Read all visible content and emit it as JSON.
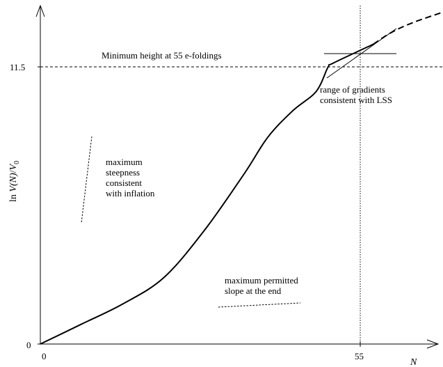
{
  "chart_data": {
    "type": "line",
    "xlabel": "N",
    "ylabel": {
      "prefix": "ln ",
      "v": "V",
      "arg": "(N)",
      "slash": "/",
      "v0": "V",
      "sub": "0"
    },
    "x_ticks": [
      {
        "value": 0,
        "label": "0"
      },
      {
        "value": 55,
        "label": "55"
      }
    ],
    "y_ticks": [
      {
        "value": 0,
        "label": "0"
      },
      {
        "value": 11.5,
        "label": "11.5"
      }
    ],
    "xlim": [
      0,
      75.6
    ],
    "ylim": [
      0,
      14.0
    ],
    "reference_lines": [
      {
        "orientation": "horizontal",
        "value": 11.5,
        "style": "dashed"
      },
      {
        "orientation": "vertical",
        "value": 55,
        "style": "dotted"
      }
    ],
    "series": [
      {
        "style": "solid",
        "points": [
          [
            0,
            0
          ],
          [
            7.8,
            0.83
          ],
          [
            15.5,
            1.66
          ],
          [
            23.2,
            2.75
          ],
          [
            30.8,
            4.7
          ],
          [
            38.3,
            7.05
          ],
          [
            42.7,
            8.55
          ],
          [
            47.4,
            9.65
          ],
          [
            51.8,
            10.45
          ],
          [
            54.0,
            11.45
          ],
          [
            55.0,
            11.62
          ],
          [
            62.5,
            12.4
          ]
        ]
      },
      {
        "style": "dashed",
        "points": [
          [
            62.5,
            12.4
          ],
          [
            66.0,
            12.9
          ],
          [
            70.0,
            13.3
          ],
          [
            75.6,
            13.73
          ]
        ]
      }
    ],
    "annotations": [
      {
        "id": "min-height",
        "text": "Minimum height at 55 e-foldings"
      },
      {
        "id": "gradients",
        "lines": [
          "range of gradients",
          "consistent with LSS"
        ]
      },
      {
        "id": "steepness",
        "lines": [
          "maximum",
          "steepness",
          "consistent",
          "with inflation"
        ]
      },
      {
        "id": "end-slope",
        "lines": [
          "maximum permitted",
          "slope at the end"
        ]
      }
    ]
  }
}
